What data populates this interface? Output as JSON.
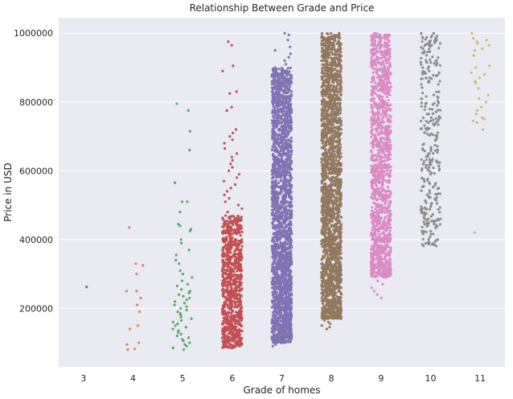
{
  "chart_data": {
    "type": "scatter",
    "style": "strip",
    "title": "Relationship Between Grade and Price",
    "xlabel": "Grade of homes",
    "ylabel": "Price in USD",
    "categories": [
      "3",
      "4",
      "5",
      "6",
      "7",
      "8",
      "9",
      "10",
      "11"
    ],
    "ylim": [
      30000,
      1045000
    ],
    "yticks": [
      200000,
      400000,
      600000,
      800000,
      1000000
    ],
    "ytick_labels": [
      "200000",
      "400000",
      "600000",
      "800000",
      "1000000"
    ],
    "grid": true,
    "background": "#eaeaf2",
    "series": [
      {
        "category": "3",
        "color": "#4c72b0",
        "points": [
          262000
        ]
      },
      {
        "category": "4",
        "color": "#dd8452",
        "points": [
          435000,
          330000,
          325000,
          300000,
          250000,
          250000,
          230000,
          210000,
          190000,
          150000,
          140000,
          100000,
          95000,
          82000,
          80000
        ]
      },
      {
        "category": "5",
        "color": "#55a868",
        "points": [
          795000,
          775000,
          715000,
          660000,
          565000,
          510000,
          510000,
          480000,
          445000,
          440000,
          430000,
          425000,
          400000,
          390000,
          370000,
          355000,
          340000,
          330000,
          310000,
          300000,
          290000,
          280000,
          270000,
          265000,
          255000,
          250000,
          245000,
          240000,
          235000,
          230000,
          225000,
          220000,
          215000,
          210000,
          205000,
          200000,
          195000,
          190000,
          185000,
          180000,
          175000,
          170000,
          165000,
          160000,
          155000,
          150000,
          145000,
          140000,
          135000,
          130000,
          125000,
          120000,
          115000,
          110000,
          105000,
          100000,
          95000,
          90000,
          85000,
          80000
        ]
      },
      {
        "category": "6",
        "color": "#c44e52",
        "band": [
          85000,
          470000
        ],
        "band_count": 900,
        "points": [
          975000,
          965000,
          905000,
          890000,
          830000,
          825000,
          785000,
          775000,
          720000,
          710000,
          700000,
          690000,
          680000,
          665000,
          650000,
          640000,
          630000,
          620000,
          610000,
          600000,
          590000,
          580000,
          570000,
          560000,
          550000,
          540000,
          530000,
          520000,
          510000,
          500000,
          490000,
          480000
        ]
      },
      {
        "category": "7",
        "color": "#8172b3",
        "band": [
          100000,
          900000
        ],
        "band_count": 2400,
        "points": [
          1000000,
          995000,
          980000,
          960000,
          950000,
          940000,
          930000,
          920000,
          910000,
          95000,
          90000
        ]
      },
      {
        "category": "8",
        "color": "#937860",
        "band": [
          170000,
          1000000
        ],
        "band_count": 2200,
        "points": [
          165000,
          160000,
          155000,
          150000,
          145000,
          140000
        ]
      },
      {
        "category": "9",
        "color": "#da8bc3",
        "band": [
          290000,
          1000000
        ],
        "band_count": 1400,
        "points": [
          280000,
          270000,
          260000,
          250000,
          240000,
          230000
        ]
      },
      {
        "category": "10",
        "color": "#8c8c8c",
        "band": [
          380000,
          1000000
        ],
        "band_count": 300,
        "points": []
      },
      {
        "category": "11",
        "color": "#ccb974",
        "points": [
          1000000,
          985000,
          980000,
          975000,
          970000,
          965000,
          955000,
          950000,
          935000,
          905000,
          900000,
          885000,
          880000,
          870000,
          860000,
          855000,
          840000,
          820000,
          810000,
          800000,
          785000,
          775000,
          765000,
          755000,
          750000,
          745000,
          740000,
          720000,
          420000
        ]
      }
    ]
  }
}
